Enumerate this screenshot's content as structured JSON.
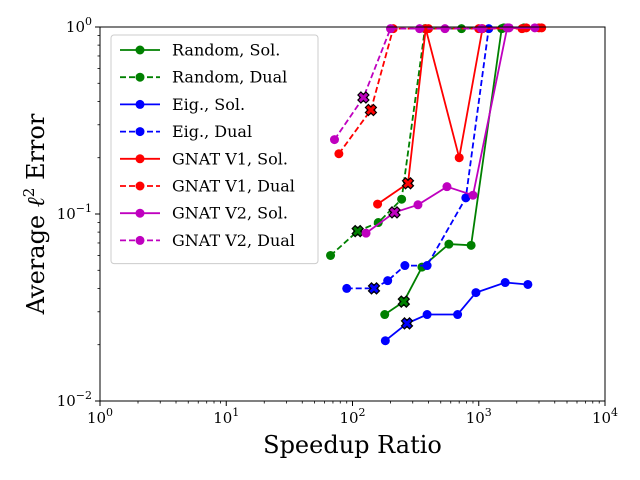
{
  "chart_data": {
    "type": "line",
    "xlabel": "Speedup Ratio",
    "ylabel_prefix": "Average ",
    "ylabel_ell": "ℓ",
    "ylabel_sup": "2",
    "ylabel_suffix": " Error",
    "xscale": "log",
    "yscale": "log",
    "xlim": [
      1,
      10000
    ],
    "ylim": [
      0.01,
      1
    ],
    "grid": false,
    "legend_position": "upper-left",
    "x_ticks": [
      {
        "value": 1,
        "base": "10",
        "exp": "0"
      },
      {
        "value": 10,
        "base": "10",
        "exp": "1"
      },
      {
        "value": 100,
        "base": "10",
        "exp": "2"
      },
      {
        "value": 1000,
        "base": "10",
        "exp": "3"
      },
      {
        "value": 10000,
        "base": "10",
        "exp": "4"
      }
    ],
    "y_ticks": [
      {
        "value": 0.01,
        "base": "10",
        "exp": "−2"
      },
      {
        "value": 0.1,
        "base": "10",
        "exp": "−1"
      },
      {
        "value": 1,
        "base": "10",
        "exp": "0"
      }
    ],
    "series": [
      {
        "name": "Random, Sol.",
        "color": "#008000",
        "dashed": false,
        "points": [
          [
            180,
            0.029
          ],
          [
            255,
            0.034
          ],
          [
            355,
            0.052
          ],
          [
            580,
            0.069
          ],
          [
            870,
            0.068
          ],
          [
            1520,
            0.98
          ],
          [
            2280,
            0.99
          ]
        ],
        "marked_index": 1
      },
      {
        "name": "Random, Dual",
        "color": "#008000",
        "dashed": true,
        "points": [
          [
            67,
            0.06
          ],
          [
            110,
            0.081
          ],
          [
            160,
            0.09
          ],
          [
            245,
            0.12
          ],
          [
            375,
            0.98
          ],
          [
            730,
            0.98
          ],
          [
            1580,
            0.99
          ]
        ],
        "marked_index": 1
      },
      {
        "name": "Eig., Sol.",
        "color": "#0000ff",
        "dashed": false,
        "points": [
          [
            182,
            0.021
          ],
          [
            270,
            0.026
          ],
          [
            390,
            0.029
          ],
          [
            680,
            0.029
          ],
          [
            950,
            0.038
          ],
          [
            1620,
            0.043
          ],
          [
            2450,
            0.042
          ]
        ],
        "marked_index": 1
      },
      {
        "name": "Eig., Dual",
        "color": "#0000ff",
        "dashed": true,
        "points": [
          [
            90,
            0.04
          ],
          [
            148,
            0.04
          ],
          [
            190,
            0.044
          ],
          [
            260,
            0.053
          ],
          [
            390,
            0.053
          ],
          [
            790,
            0.122
          ],
          [
            1200,
            0.98
          ]
        ],
        "marked_index": 1
      },
      {
        "name": "GNAT V1, Sol.",
        "color": "#ff0000",
        "dashed": false,
        "points": [
          [
            158,
            0.113
          ],
          [
            275,
            0.146
          ],
          [
            380,
            0.98
          ],
          [
            700,
            0.2
          ],
          [
            1070,
            0.98
          ],
          [
            2380,
            0.99
          ],
          [
            3150,
            0.99
          ]
        ],
        "marked_index": 1
      },
      {
        "name": "GNAT V1, Dual",
        "color": "#ff0000",
        "dashed": true,
        "points": [
          [
            78,
            0.21
          ],
          [
            140,
            0.36
          ],
          [
            210,
            0.98
          ],
          [
            400,
            0.98
          ],
          [
            1000,
            0.98
          ],
          [
            2200,
            0.98
          ],
          [
            3000,
            0.99
          ]
        ],
        "marked_index": 1
      },
      {
        "name": "GNAT V2, Sol.",
        "color": "#bf00bf",
        "dashed": false,
        "points": [
          [
            128,
            0.079
          ],
          [
            215,
            0.102
          ],
          [
            330,
            0.112
          ],
          [
            560,
            0.14
          ],
          [
            900,
            0.126
          ],
          [
            1680,
            0.99
          ],
          [
            2780,
            0.99
          ]
        ],
        "marked_index": 1
      },
      {
        "name": "GNAT V2, Dual",
        "color": "#bf00bf",
        "dashed": true,
        "points": [
          [
            72,
            0.25
          ],
          [
            122,
            0.42
          ],
          [
            200,
            0.98
          ],
          [
            340,
            0.98
          ],
          [
            540,
            0.98
          ],
          [
            1050,
            0.98
          ],
          [
            1740,
            0.99
          ]
        ],
        "marked_index": 1
      }
    ]
  }
}
